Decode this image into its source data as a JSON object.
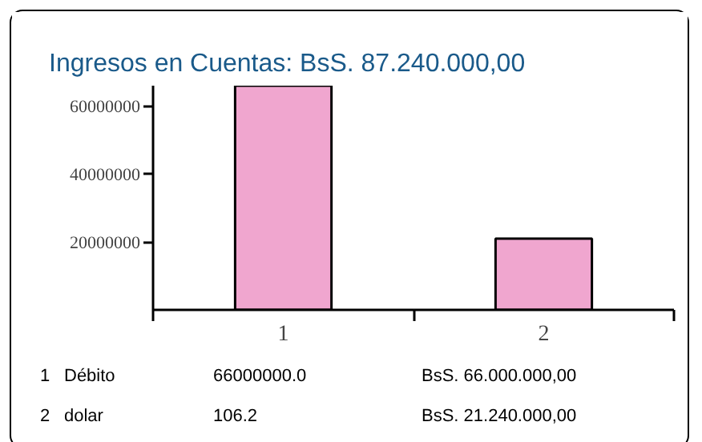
{
  "chart_data": {
    "type": "bar",
    "title": "Ingresos en Cuentas: BsS. 87.240.000,00",
    "categories": [
      "1",
      "2"
    ],
    "values": [
      66000000,
      21000000
    ],
    "color": "#f0a6cf",
    "ylim": [
      0,
      66000000
    ],
    "yticks": [
      20000000,
      40000000,
      60000000
    ],
    "grid": false,
    "legend": false,
    "annotations": [
      "1",
      "Débito",
      "66000000.0",
      "BsS. 66.000.000,00",
      "2",
      "dolar",
      "106.2",
      "BsS. 21.240.000,00"
    ]
  }
}
